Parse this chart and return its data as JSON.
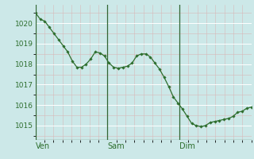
{
  "background_color": "#cce8e8",
  "grid_color_major": "#ffffff",
  "grid_color_minor": "#d8b8b8",
  "line_color": "#2d6e2d",
  "marker_color": "#2d6e2d",
  "tick_label_color": "#2d6e2d",
  "vline_color": "#336633",
  "hline_color": "#336633",
  "ylim": [
    1014.3,
    1020.9
  ],
  "yticks": [
    1015,
    1016,
    1017,
    1018,
    1019,
    1020
  ],
  "xlabel_labels": [
    "Ven",
    "Sam",
    "Dim"
  ],
  "y_values": [
    1020.5,
    1020.2,
    1020.1,
    1019.8,
    1019.5,
    1019.2,
    1018.9,
    1018.6,
    1018.15,
    1017.85,
    1017.85,
    1018.0,
    1018.25,
    1018.6,
    1018.55,
    1018.4,
    1018.05,
    1017.85,
    1017.8,
    1017.85,
    1017.9,
    1018.05,
    1018.4,
    1018.5,
    1018.5,
    1018.35,
    1018.05,
    1017.75,
    1017.35,
    1016.9,
    1016.4,
    1016.1,
    1015.8,
    1015.45,
    1015.1,
    1015.0,
    1014.95,
    1015.0,
    1015.15,
    1015.2,
    1015.25,
    1015.3,
    1015.35,
    1015.45,
    1015.65,
    1015.7,
    1015.85,
    1015.9
  ],
  "n_days": 3,
  "points_per_day": 16
}
